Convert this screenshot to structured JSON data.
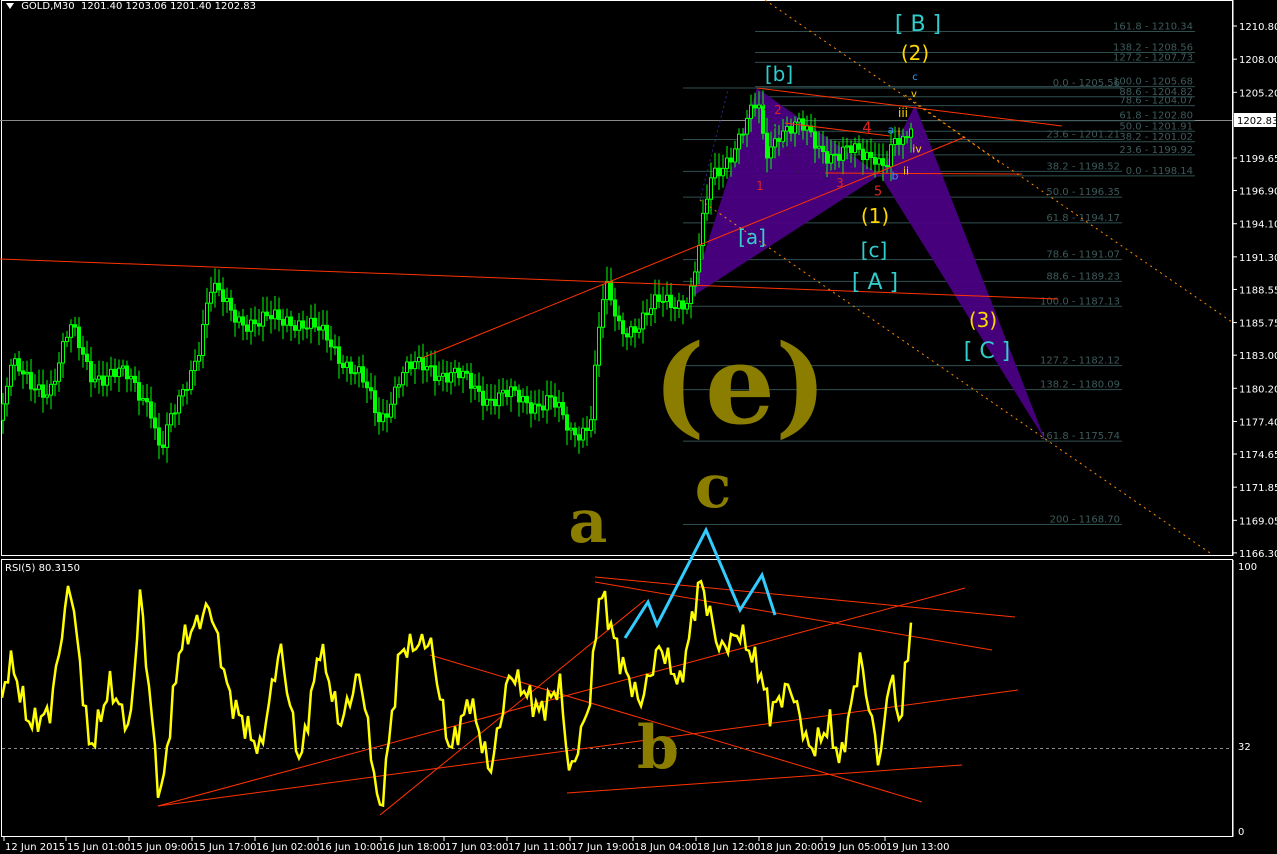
{
  "header": {
    "symbol": "GOLD,M30",
    "open": "1201.40",
    "high": "1203.06",
    "low": "1201.40",
    "close": "1202.83"
  },
  "rsi_header": {
    "label": "RSI(5) 80.3150"
  },
  "colors": {
    "background": "#000000",
    "bull_candle": "#00ff00",
    "bear_candle": "#00ff00",
    "rsi_line": "#ffff00",
    "trendline": "#ff3300",
    "dotted_line": "#ff8c00",
    "pattern_fill": "#4b0082",
    "fib_line": "#2f4f4f",
    "wave_cyan": "#33cccc",
    "wave_yellow": "#ffd700",
    "wave_red": "#dd2222",
    "wave_blue": "#3399ff",
    "handwriting": "#8b7d00",
    "arrow": "#33ccff"
  },
  "chart_data": [
    {
      "type": "candlestick",
      "title": "GOLD,M30",
      "ylim": [
        1166.3,
        1210.8
      ],
      "y_ticks": [
        "1210.80",
        "1208.00",
        "1205.20",
        "1199.65",
        "1196.90",
        "1194.10",
        "1191.30",
        "1188.55",
        "1185.75",
        "1183.00",
        "1180.20",
        "1177.40",
        "1174.65",
        "1171.85",
        "1169.05",
        "1166.30"
      ],
      "current_price": "1202.83",
      "x_ticks": [
        "12 Jun 2015",
        "15 Jun 01:00",
        "15 Jun 09:00",
        "15 Jun 17:00",
        "16 Jun 02:00",
        "16 Jun 10:00",
        "16 Jun 18:00",
        "17 Jun 03:00",
        "17 Jun 11:00",
        "17 Jun 19:00",
        "18 Jun 04:00",
        "18 Jun 12:00",
        "18 Jun 20:00",
        "19 Jun 05:00",
        "19 Jun 13:00"
      ],
      "close_path": [
        1177.5,
        1182.6,
        1180,
        1180.5,
        1185.1,
        1181.7,
        1181.3,
        1180.9,
        1179.2,
        1174.6,
        1179.2,
        1184.3,
        1188.5,
        1186.8,
        1185.5,
        1186.4,
        1185.1,
        1184.3,
        1180.9,
        1177.5,
        1181.3,
        1182.2,
        1180.9,
        1179.6,
        1179.2,
        1179.2,
        1176.3,
        1177.5,
        1186,
        1188.5,
        1185.1,
        1186,
        1187.2,
        1188.1,
        1192.3,
        1197.4,
        1200.3,
        1202.9,
        1204.1,
        1199.9,
        1202.4,
        1202,
        1200.7,
        1199.9,
        1199.9,
        1200.3,
        1199.1,
        1200.7,
        1200.3,
        1202.8
      ],
      "fibonacci_sets": [
        {
          "levels": [
            "161.8 - 1210.34",
            "138.2 - 1208.56",
            "127.2 - 1207.73",
            "100.0 - 1205.68",
            "88.6 - 1204.82",
            "78.6 - 1204.07",
            "61.8 - 1202.80",
            "50.0 - 1201.91",
            "38.2 - 1201.02",
            "23.6  - 1199.92",
            "0.0 - 1198.14"
          ],
          "prices": [
            1210.34,
            1208.56,
            1207.73,
            1205.68,
            1204.82,
            1204.07,
            1202.8,
            1201.91,
            1201.02,
            1199.92,
            1198.14
          ]
        },
        {
          "levels": [
            "0.0 - 1205.56",
            "23.6  - 1201.21",
            "38.2 - 1198.52",
            "50.0 - 1196.35",
            "61.8 - 1194.17",
            "78.6 - 1191.07",
            "88.6 - 1189.23",
            "100.0 - 1187.13",
            "127.2 - 1182.12",
            "138.2 - 1180.09",
            "161.8 - 1175.74",
            "200 - 1168.70"
          ],
          "prices": [
            1205.56,
            1201.21,
            1198.52,
            1196.35,
            1194.17,
            1191.07,
            1189.23,
            1187.13,
            1182.12,
            1180.09,
            1175.74,
            1168.7
          ]
        }
      ]
    },
    {
      "type": "line",
      "title": "RSI(5) 80.3150",
      "ylim": [
        0,
        100
      ],
      "y_ticks": [
        "100",
        "32",
        "0"
      ],
      "level_line": 32,
      "values": [
        45,
        65,
        40,
        45,
        95,
        30,
        55,
        38,
        90,
        10,
        70,
        85,
        50,
        30,
        70,
        25,
        70,
        40,
        60,
        6,
        68,
        72,
        30,
        50,
        22,
        60,
        45,
        55,
        20,
        50,
        92,
        65,
        48,
        70,
        55,
        95,
        68,
        75,
        60,
        45,
        55,
        30,
        40,
        25,
        65,
        25,
        60,
        40,
        82
      ]
    }
  ],
  "wave_labels": [
    {
      "text": "[ B ]",
      "color": "cyan"
    },
    {
      "text": "(2)",
      "color": "yellow"
    },
    {
      "text": "[b]",
      "color": "cyan"
    },
    {
      "text": "c",
      "color": "blue"
    },
    {
      "text": "v",
      "color": "yellow"
    },
    {
      "text": "iii",
      "color": "yellow"
    },
    {
      "text": "a",
      "color": "blue"
    },
    {
      "text": "i",
      "color": "yellow"
    },
    {
      "text": "iv",
      "color": "yellow"
    },
    {
      "text": "ii",
      "color": "yellow"
    },
    {
      "text": "b",
      "color": "blue"
    },
    {
      "text": "1",
      "color": "red"
    },
    {
      "text": "2",
      "color": "red"
    },
    {
      "text": "3",
      "color": "red"
    },
    {
      "text": "4",
      "color": "red"
    },
    {
      "text": "5",
      "color": "red"
    },
    {
      "text": "(1)",
      "color": "yellow"
    },
    {
      "text": "[a]",
      "color": "cyan"
    },
    {
      "text": "[c]",
      "color": "cyan"
    },
    {
      "text": "[ A ]",
      "color": "cyan"
    },
    {
      "text": "(3)",
      "color": "yellow"
    },
    {
      "text": "[ C ]",
      "color": "cyan"
    }
  ],
  "handwriting": [
    "(e)",
    "c",
    "a",
    "b"
  ]
}
